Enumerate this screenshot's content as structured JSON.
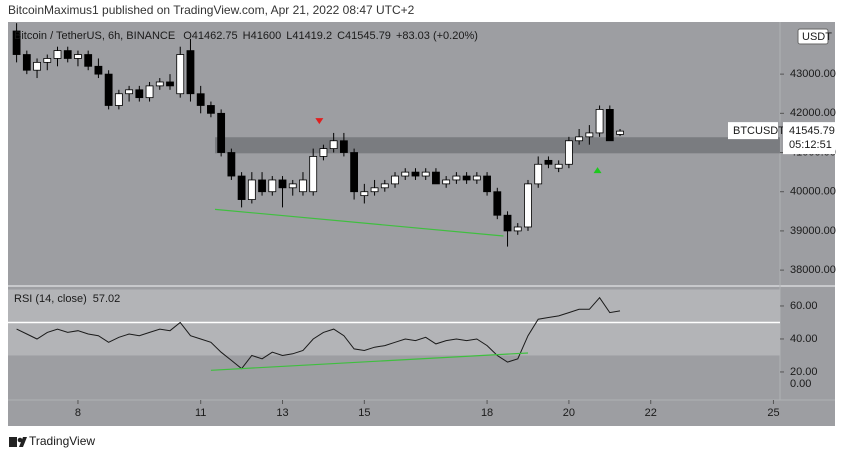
{
  "header": {
    "byline": "BitcoinMaximus1 published on TradingView.com, Apr 21, 2022 08:47 UTC+2",
    "footer": "TradingView"
  },
  "chart_data": [
    {
      "type": "candlestick",
      "title": "Bitcoin / TetherUS, 6h, BINANCE",
      "ohlc_letters": [
        "O",
        "H",
        "L",
        "C"
      ],
      "change": "+83.03 (+0.20%)",
      "currency": "USDT",
      "symbol": "BTCUSDT",
      "countdown": "05:12:51",
      "x": [
        6.5,
        6.75,
        7,
        7.25,
        7.5,
        7.75,
        8,
        8.25,
        8.5,
        8.75,
        9,
        9.25,
        9.5,
        9.75,
        10,
        10.25,
        10.5,
        10.75,
        11,
        11.25,
        11.5,
        11.75,
        12,
        12.25,
        12.5,
        12.75,
        13,
        13.25,
        13.5,
        13.75,
        14,
        14.25,
        14.5,
        14.75,
        15,
        15.25,
        15.5,
        15.75,
        16,
        16.25,
        16.5,
        16.75,
        17,
        17.25,
        17.5,
        17.75,
        18,
        18.25,
        18.5,
        18.75,
        19,
        19.25,
        19.5,
        19.75,
        20,
        20.25,
        20.5,
        20.75,
        21,
        21.25
      ],
      "open": [
        44100,
        43500,
        43100,
        43300,
        43400,
        43600,
        43400,
        43500,
        43200,
        43000,
        42200,
        42500,
        42600,
        42400,
        42700,
        42800,
        42500,
        43600,
        42500,
        42200,
        42000,
        41000,
        40400,
        39800,
        40300,
        40000,
        40300,
        40100,
        40000,
        40000,
        40900,
        41100,
        41300,
        41000,
        39900,
        40000,
        40100,
        40200,
        40400,
        40500,
        40400,
        40500,
        40200,
        40300,
        40400,
        40300,
        40400,
        40000,
        39400,
        39000,
        39100,
        40200,
        40800,
        40600,
        40700,
        41300,
        41400,
        41500,
        42100,
        41462.75
      ],
      "high": [
        44300,
        43600,
        43400,
        43500,
        43700,
        43700,
        43600,
        43600,
        43400,
        43100,
        42600,
        42700,
        42700,
        42800,
        42900,
        43000,
        43700,
        43900,
        42700,
        42300,
        42100,
        41100,
        40500,
        40500,
        40500,
        40400,
        40400,
        40300,
        40500,
        41100,
        41200,
        41500,
        41500,
        41100,
        40200,
        40300,
        40300,
        40500,
        40600,
        40600,
        40600,
        40600,
        40400,
        40500,
        40500,
        40500,
        40500,
        40100,
        39500,
        39200,
        40300,
        40900,
        40900,
        40800,
        41400,
        41600,
        41700,
        42200,
        42200,
        41600
      ],
      "low": [
        43300,
        43000,
        42900,
        43100,
        43200,
        43300,
        43200,
        43100,
        42900,
        42100,
        42100,
        42300,
        42300,
        42300,
        42600,
        42600,
        42400,
        42300,
        42000,
        41900,
        40900,
        40300,
        39600,
        39700,
        39900,
        39900,
        39600,
        39900,
        39900,
        39900,
        40800,
        41000,
        40900,
        39800,
        39700,
        39900,
        40000,
        40100,
        40300,
        40300,
        40300,
        40200,
        40100,
        40200,
        40200,
        40200,
        39900,
        39300,
        38600,
        38900,
        39000,
        40100,
        40600,
        40500,
        40600,
        41200,
        41200,
        41400,
        41300,
        41419.2
      ],
      "close": [
        43500,
        43100,
        43300,
        43400,
        43600,
        43400,
        43500,
        43200,
        43000,
        42200,
        42500,
        42600,
        42400,
        42700,
        42800,
        42700,
        43500,
        42500,
        42200,
        42000,
        41000,
        40400,
        39800,
        40300,
        40000,
        40300,
        40100,
        40200,
        40300,
        40900,
        41100,
        41300,
        41000,
        40000,
        40000,
        40100,
        40200,
        40400,
        40500,
        40400,
        40500,
        40200,
        40300,
        40400,
        40300,
        40400,
        40000,
        39400,
        39000,
        39100,
        40200,
        40700,
        40700,
        40700,
        41300,
        41400,
        41500,
        42100,
        41300,
        41545.79
      ],
      "up_color": "#ffffff",
      "down_color": "#000000",
      "zone": [
        40980,
        41390
      ],
      "zone_start": 11.35,
      "trendline": {
        "x": [
          11.35,
          18.4
        ],
        "values": [
          39550,
          38870
        ],
        "color": "#3fbf3f"
      },
      "red_marker": {
        "x": 13.9,
        "value": 41800
      },
      "green_marker": {
        "x": 20.7,
        "value": 40550
      },
      "xlim": [
        6.29,
        25.16
      ],
      "ylim": [
        37620,
        44330
      ],
      "yticks": [
        {
          "value": 38000,
          "label": "38000.00"
        },
        {
          "value": 39000,
          "label": "39000.00"
        },
        {
          "value": 40000,
          "label": "40000.00"
        },
        {
          "value": 41000,
          "label": "41000.00"
        },
        {
          "value": 42000,
          "label": "42000.00"
        },
        {
          "value": 43000,
          "label": "43000.00"
        }
      ]
    },
    {
      "type": "line",
      "title": "RSI (14, close)",
      "last_label": "57.02",
      "color": "#1a1a1a",
      "x": [
        6.5,
        6.75,
        7,
        7.25,
        7.5,
        7.75,
        8,
        8.25,
        8.5,
        8.75,
        9,
        9.25,
        9.5,
        9.75,
        10,
        10.25,
        10.5,
        10.75,
        11,
        11.25,
        11.5,
        11.75,
        12,
        12.25,
        12.5,
        12.75,
        13,
        13.25,
        13.5,
        13.75,
        14,
        14.25,
        14.5,
        14.75,
        15,
        15.25,
        15.5,
        15.75,
        16,
        16.25,
        16.5,
        16.75,
        17,
        17.25,
        17.5,
        17.75,
        18,
        18.25,
        18.5,
        18.75,
        19,
        19.25,
        19.5,
        19.75,
        20,
        20.25,
        20.5,
        20.75,
        21,
        21.25
      ],
      "values": [
        46,
        43,
        40,
        44,
        46,
        44,
        45,
        43,
        42,
        38,
        41,
        43,
        42,
        44,
        46,
        45,
        50,
        42,
        40,
        38,
        32,
        27,
        22,
        30,
        28,
        32,
        30,
        31,
        33,
        40,
        44,
        46,
        42,
        34,
        33,
        35,
        36,
        38,
        40,
        39,
        41,
        37,
        39,
        40,
        39,
        40,
        36,
        30,
        26,
        28,
        42,
        52,
        53,
        54,
        56,
        58,
        58,
        65,
        56,
        57.02
      ],
      "band": [
        30,
        70
      ],
      "midline": 50,
      "trendline": {
        "x": [
          11.25,
          19.0
        ],
        "values": [
          21,
          31.5
        ],
        "color": "#3fbf3f"
      },
      "scale_note": "0.00",
      "xlim": [
        6.29,
        25.16
      ],
      "ylim": [
        3,
        71.5
      ],
      "yticks": [
        {
          "value": 20,
          "label": "20.00"
        },
        {
          "value": 40,
          "label": "40.00"
        },
        {
          "value": 60,
          "label": "60.00"
        }
      ],
      "xticks": [
        8,
        11,
        13,
        15,
        18,
        20,
        22,
        25
      ]
    }
  ]
}
